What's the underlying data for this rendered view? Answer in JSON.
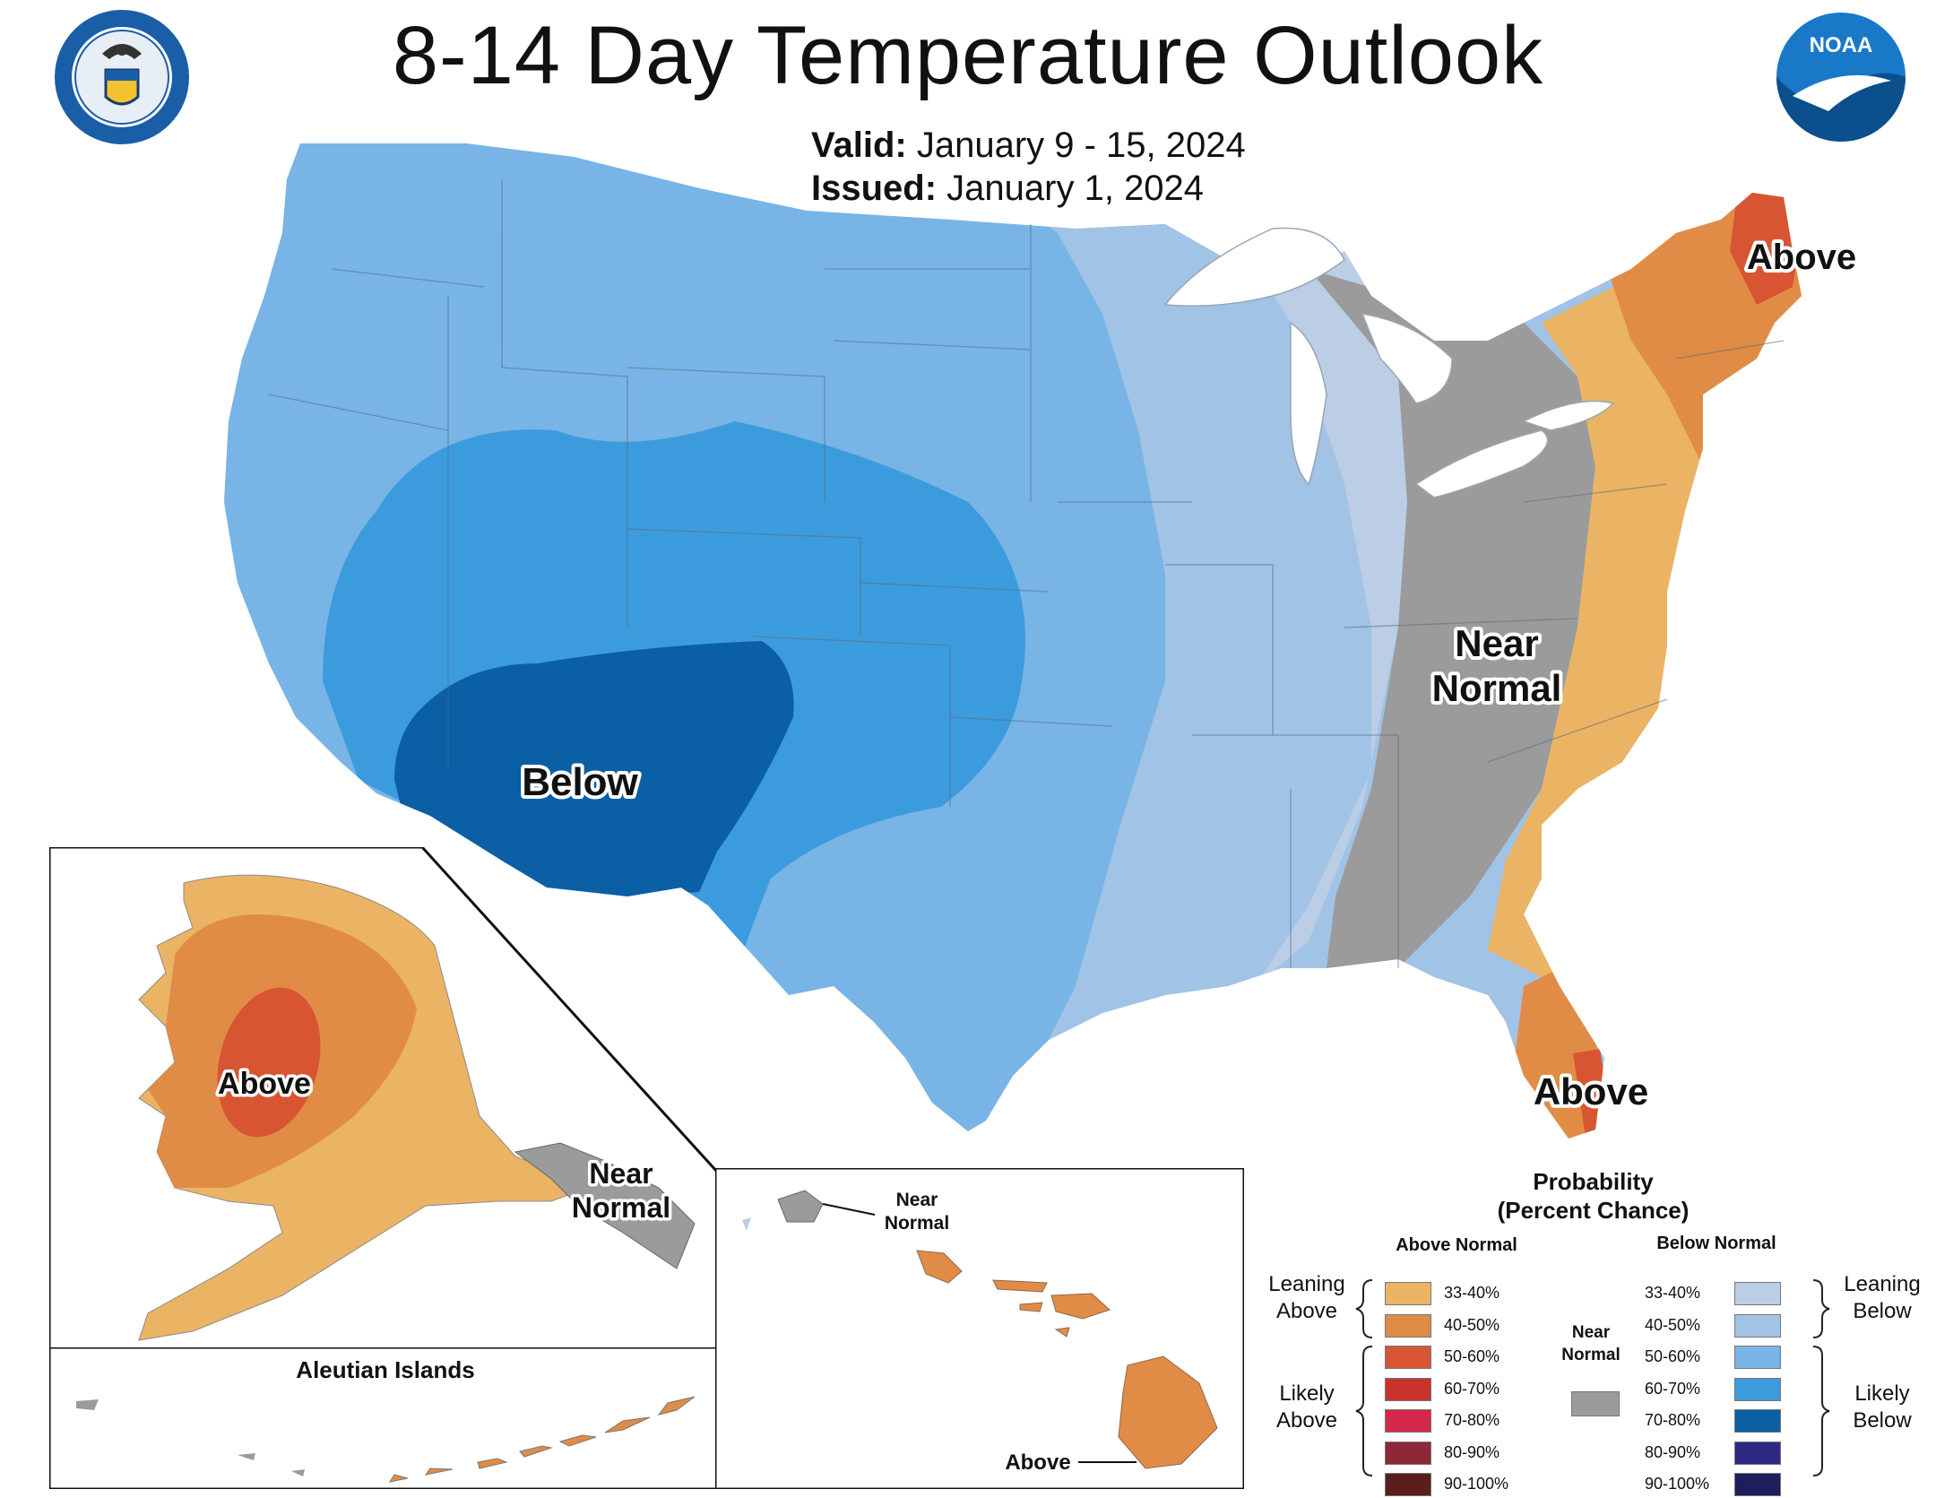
{
  "header": {
    "title": "8-14 Day Temperature Outlook",
    "valid_label": "Valid:",
    "valid_value": "January 9 - 15, 2024",
    "issued_label": "Issued:",
    "issued_value": "January 1, 2024",
    "left_logo": "department-of-commerce-seal",
    "right_logo": "noaa-logo",
    "noaa_text": "NOAA"
  },
  "map_labels": {
    "above_northeast": "Above",
    "near_normal_line1": "Near",
    "near_normal_line2": "Normal",
    "below_southwest": "Below",
    "above_florida": "Above",
    "alaska_above": "Above",
    "alaska_near_line1": "Near",
    "alaska_near_line2": "Normal",
    "aleutian_title": "Aleutian Islands",
    "hawaii_near_line1": "Near",
    "hawaii_near_line2": "Normal",
    "hawaii_above": "Above"
  },
  "legend": {
    "title_line1": "Probability",
    "title_line2": "(Percent Chance)",
    "above_header": "Above Normal",
    "below_header": "Below Normal",
    "near_line1": "Near",
    "near_line2": "Normal",
    "leaning_above_1": "Leaning",
    "leaning_above_2": "Above",
    "likely_above_1": "Likely",
    "likely_above_2": "Above",
    "leaning_below_1": "Leaning",
    "leaning_below_2": "Below",
    "likely_below_1": "Likely",
    "likely_below_2": "Below",
    "above_bins": [
      {
        "label": "33-40%",
        "color": "#ebb464"
      },
      {
        "label": "40-50%",
        "color": "#e18c46"
      },
      {
        "label": "50-60%",
        "color": "#d75532"
      },
      {
        "label": "60-70%",
        "color": "#c8322d"
      },
      {
        "label": "70-80%",
        "color": "#d2284b"
      },
      {
        "label": "80-90%",
        "color": "#8c2837"
      },
      {
        "label": "90-100%",
        "color": "#5a1e1e"
      }
    ],
    "below_bins": [
      {
        "label": "33-40%",
        "color": "#bccde6"
      },
      {
        "label": "40-50%",
        "color": "#a0c3e6"
      },
      {
        "label": "50-60%",
        "color": "#78b4e6"
      },
      {
        "label": "60-70%",
        "color": "#3c9bdc"
      },
      {
        "label": "70-80%",
        "color": "#0a5fa5"
      },
      {
        "label": "80-90%",
        "color": "#2d2882"
      },
      {
        "label": "90-100%",
        "color": "#1e1e5a"
      }
    ],
    "near_color": "#9b9b9b"
  }
}
